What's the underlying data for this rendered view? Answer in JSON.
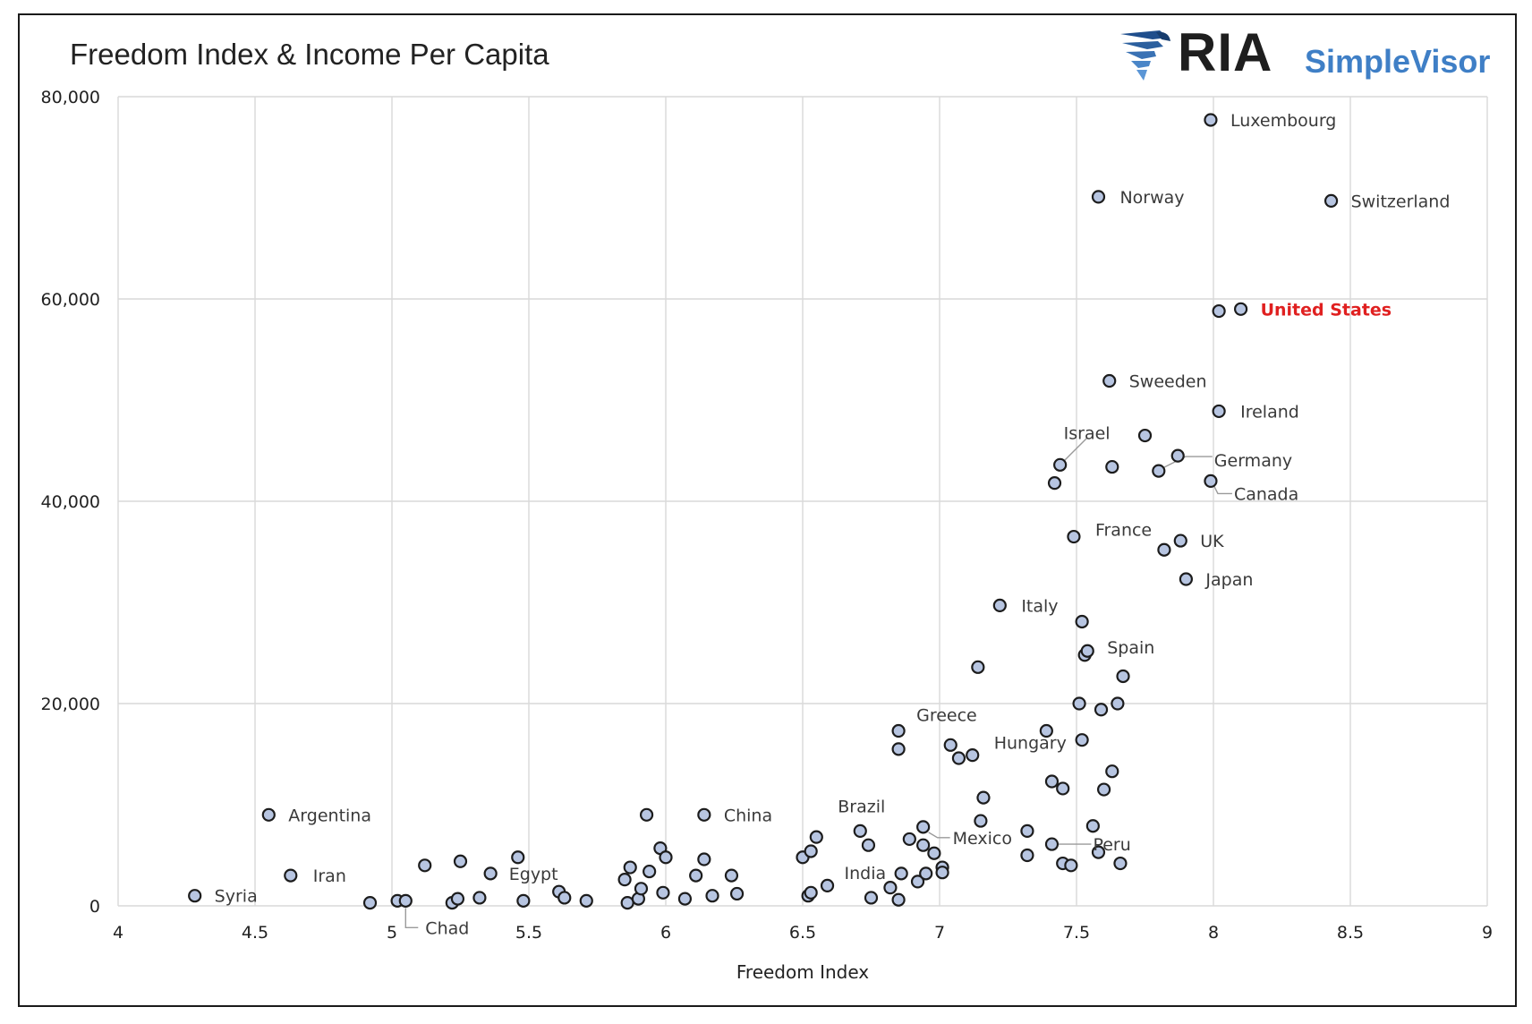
{
  "chart_data": {
    "type": "scatter",
    "title": "Freedom Index & Income Per Capita",
    "xlabel": "Freedom Index",
    "ylabel": "",
    "xlim": [
      4,
      9
    ],
    "ylim": [
      0,
      80000
    ],
    "xticks": [
      4,
      4.5,
      5,
      5.5,
      6,
      6.5,
      7,
      7.5,
      8,
      8.5,
      9
    ],
    "xtick_labels": [
      "4",
      "4.5",
      "5",
      "5.5",
      "6",
      "6.5",
      "7",
      "7.5",
      "8",
      "8.5",
      "9"
    ],
    "yticks": [
      0,
      20000,
      40000,
      60000,
      80000
    ],
    "ytick_labels": [
      "0",
      "20,000",
      "40,000",
      "60,000",
      "80,000"
    ],
    "grid": true,
    "colors": {
      "marker_fill": "#b7c5e1",
      "marker_edge": "#1c1c1c",
      "highlight": "#e02020",
      "grid": "#d9d9d9"
    },
    "points": [
      {
        "x": 4.28,
        "y": 1000
      },
      {
        "x": 4.55,
        "y": 9000
      },
      {
        "x": 4.63,
        "y": 3000
      },
      {
        "x": 4.92,
        "y": 300
      },
      {
        "x": 5.02,
        "y": 500
      },
      {
        "x": 5.05,
        "y": 500
      },
      {
        "x": 5.12,
        "y": 4000
      },
      {
        "x": 5.22,
        "y": 300
      },
      {
        "x": 5.24,
        "y": 700
      },
      {
        "x": 5.25,
        "y": 4400
      },
      {
        "x": 5.32,
        "y": 800
      },
      {
        "x": 5.36,
        "y": 3200
      },
      {
        "x": 5.46,
        "y": 4800
      },
      {
        "x": 5.48,
        "y": 500
      },
      {
        "x": 5.61,
        "y": 1400
      },
      {
        "x": 5.63,
        "y": 800
      },
      {
        "x": 5.71,
        "y": 500
      },
      {
        "x": 5.85,
        "y": 2600
      },
      {
        "x": 5.86,
        "y": 300
      },
      {
        "x": 5.87,
        "y": 3800
      },
      {
        "x": 5.9,
        "y": 700
      },
      {
        "x": 5.91,
        "y": 1700
      },
      {
        "x": 5.93,
        "y": 9000
      },
      {
        "x": 5.94,
        "y": 3400
      },
      {
        "x": 5.98,
        "y": 5700
      },
      {
        "x": 5.99,
        "y": 1300
      },
      {
        "x": 6.0,
        "y": 4800
      },
      {
        "x": 6.07,
        "y": 700
      },
      {
        "x": 6.11,
        "y": 3000
      },
      {
        "x": 6.14,
        "y": 9000
      },
      {
        "x": 6.14,
        "y": 4600
      },
      {
        "x": 6.17,
        "y": 1000
      },
      {
        "x": 6.24,
        "y": 3000
      },
      {
        "x": 6.26,
        "y": 1200
      },
      {
        "x": 6.5,
        "y": 4800
      },
      {
        "x": 6.52,
        "y": 1000
      },
      {
        "x": 6.53,
        "y": 5400
      },
      {
        "x": 6.53,
        "y": 1300
      },
      {
        "x": 6.55,
        "y": 6800
      },
      {
        "x": 6.59,
        "y": 2000
      },
      {
        "x": 6.71,
        "y": 7400
      },
      {
        "x": 6.74,
        "y": 6000
      },
      {
        "x": 6.75,
        "y": 800
      },
      {
        "x": 6.82,
        "y": 1800
      },
      {
        "x": 6.85,
        "y": 17300
      },
      {
        "x": 6.85,
        "y": 15500
      },
      {
        "x": 6.85,
        "y": 600
      },
      {
        "x": 6.86,
        "y": 3200
      },
      {
        "x": 6.89,
        "y": 6600
      },
      {
        "x": 6.92,
        "y": 2400
      },
      {
        "x": 6.94,
        "y": 7800
      },
      {
        "x": 6.94,
        "y": 6000
      },
      {
        "x": 6.95,
        "y": 3200
      },
      {
        "x": 6.98,
        "y": 5200
      },
      {
        "x": 7.01,
        "y": 3800
      },
      {
        "x": 7.01,
        "y": 3300
      },
      {
        "x": 7.04,
        "y": 15900
      },
      {
        "x": 7.07,
        "y": 14600
      },
      {
        "x": 7.12,
        "y": 14900
      },
      {
        "x": 7.14,
        "y": 23600
      },
      {
        "x": 7.15,
        "y": 8400
      },
      {
        "x": 7.16,
        "y": 10700
      },
      {
        "x": 7.22,
        "y": 29700
      },
      {
        "x": 7.32,
        "y": 7400
      },
      {
        "x": 7.32,
        "y": 5000
      },
      {
        "x": 7.39,
        "y": 17300
      },
      {
        "x": 7.41,
        "y": 12300
      },
      {
        "x": 7.41,
        "y": 6100
      },
      {
        "x": 7.42,
        "y": 41800
      },
      {
        "x": 7.44,
        "y": 43600
      },
      {
        "x": 7.45,
        "y": 11600
      },
      {
        "x": 7.45,
        "y": 4200
      },
      {
        "x": 7.48,
        "y": 4000
      },
      {
        "x": 7.49,
        "y": 36500
      },
      {
        "x": 7.51,
        "y": 20000
      },
      {
        "x": 7.52,
        "y": 28100
      },
      {
        "x": 7.52,
        "y": 16400
      },
      {
        "x": 7.53,
        "y": 24800
      },
      {
        "x": 7.54,
        "y": 25200
      },
      {
        "x": 7.56,
        "y": 7900
      },
      {
        "x": 7.58,
        "y": 70100
      },
      {
        "x": 7.58,
        "y": 5300
      },
      {
        "x": 7.59,
        "y": 19400
      },
      {
        "x": 7.6,
        "y": 11500
      },
      {
        "x": 7.62,
        "y": 51900
      },
      {
        "x": 7.63,
        "y": 43400
      },
      {
        "x": 7.63,
        "y": 13300
      },
      {
        "x": 7.65,
        "y": 20000
      },
      {
        "x": 7.66,
        "y": 4200
      },
      {
        "x": 7.67,
        "y": 22700
      },
      {
        "x": 7.75,
        "y": 46500
      },
      {
        "x": 7.8,
        "y": 43000
      },
      {
        "x": 7.82,
        "y": 35200
      },
      {
        "x": 7.87,
        "y": 44500
      },
      {
        "x": 7.88,
        "y": 36100
      },
      {
        "x": 7.9,
        "y": 32300
      },
      {
        "x": 7.99,
        "y": 77700
      },
      {
        "x": 7.99,
        "y": 42000
      },
      {
        "x": 8.02,
        "y": 58800
      },
      {
        "x": 8.02,
        "y": 48900
      },
      {
        "x": 8.1,
        "y": 59000
      },
      {
        "x": 8.43,
        "y": 69700
      }
    ],
    "annotations": [
      {
        "text": "Syria",
        "x": 4.28,
        "y": 1000
      },
      {
        "text": "Argentina",
        "x": 4.55,
        "y": 9000
      },
      {
        "text": "Iran",
        "x": 4.63,
        "y": 3000
      },
      {
        "text": "Chad",
        "x": 5.05,
        "y": 500
      },
      {
        "text": "Egypt",
        "x": 5.46,
        "y": 4800
      },
      {
        "text": "China",
        "x": 6.14,
        "y": 9000
      },
      {
        "text": "Brazil",
        "x": 6.71,
        "y": 7400
      },
      {
        "text": "India",
        "x": 6.75,
        "y": 800
      },
      {
        "text": "Greece",
        "x": 6.85,
        "y": 17300
      },
      {
        "text": "Mexico",
        "x": 6.94,
        "y": 7800
      },
      {
        "text": "Hungary",
        "x": 7.12,
        "y": 14900
      },
      {
        "text": "Italy",
        "x": 7.22,
        "y": 29700
      },
      {
        "text": "Peru",
        "x": 7.41,
        "y": 6100
      },
      {
        "text": "Israel",
        "x": 7.44,
        "y": 43600
      },
      {
        "text": "France",
        "x": 7.49,
        "y": 36500
      },
      {
        "text": "Spain",
        "x": 7.54,
        "y": 25200
      },
      {
        "text": "Norway",
        "x": 7.58,
        "y": 70100
      },
      {
        "text": "Sweeden",
        "x": 7.62,
        "y": 51900
      },
      {
        "text": "Germany",
        "x": 7.8,
        "y": 43000
      },
      {
        "text": "UK",
        "x": 7.88,
        "y": 36100
      },
      {
        "text": "Japan",
        "x": 7.9,
        "y": 32300
      },
      {
        "text": "Luxembourg",
        "x": 7.99,
        "y": 77700
      },
      {
        "text": "Canada",
        "x": 7.99,
        "y": 42000
      },
      {
        "text": "Ireland",
        "x": 8.02,
        "y": 48900
      },
      {
        "text": "United States",
        "x": 8.1,
        "y": 59000,
        "highlight": true
      },
      {
        "text": "Switzerland",
        "x": 8.43,
        "y": 69700
      }
    ]
  },
  "logo": {
    "brand": "RIA",
    "product": "SimpleVisor",
    "brand_color": "#1e1e1e",
    "product_color": "#3f7fc6",
    "icon": "eagle-icon"
  }
}
